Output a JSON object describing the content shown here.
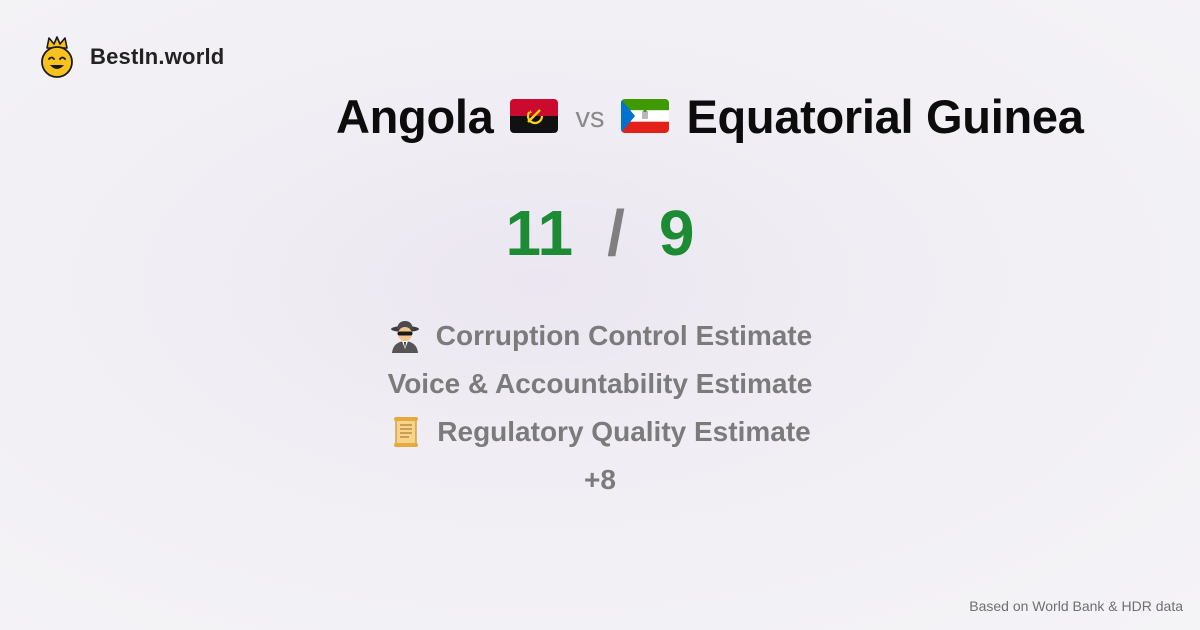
{
  "brand": {
    "name": "BestIn.world",
    "logo_icon": "crowned-smiley-icon"
  },
  "comparison": {
    "country_a": {
      "name": "Angola",
      "flag_icon": "angola-flag-icon",
      "score": "11"
    },
    "vs_label": "vs",
    "country_b": {
      "name": "Equatorial Guinea",
      "flag_icon": "equatorial-guinea-flag-icon",
      "score": "9"
    },
    "score_separator": "/"
  },
  "metrics": [
    {
      "label": "Corruption Control Estimate",
      "icon": "spy-icon"
    },
    {
      "label": "Voice & Accountability Estimate",
      "icon": ""
    },
    {
      "label": "Regulatory Quality Estimate",
      "icon": "scroll-icon"
    }
  ],
  "more_label": "+8",
  "footer": {
    "source_text": "Based on World Bank & HDR data"
  },
  "colors": {
    "score_green": "#1d8b34",
    "muted_gray": "#7b7b7b",
    "brand_yellow": "#f7c21e"
  }
}
